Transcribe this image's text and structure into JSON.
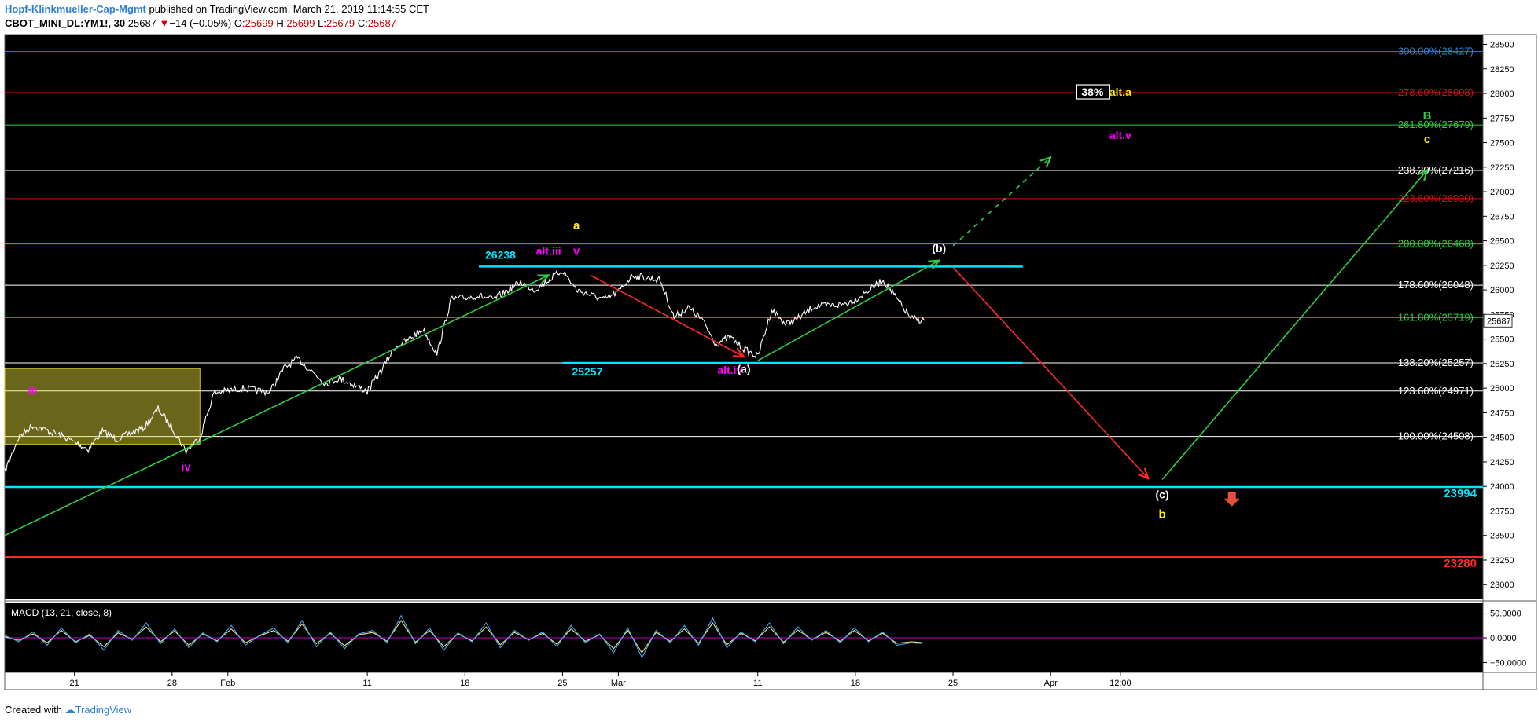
{
  "header": {
    "author": "Hopf-Klinkmueller-Cap-Mgmt",
    "published": "published on TradingView.com, March 21, 2019 11:14:55 CET",
    "symbol": "CBOT_MINI_DL:YM1!, 30",
    "last": "25687",
    "change_arrow": "▼",
    "change": "−14 (−0.05%)",
    "o_label": "O:",
    "o": "25699",
    "h_label": "H:",
    "h": "25699",
    "l_label": "L:",
    "l": "25679",
    "c_label": "C:",
    "c": "25687"
  },
  "footer": {
    "created_with": "Created with",
    "brand": "TradingView",
    "logo_icon": "tradingview-cloud-icon"
  },
  "chart_data": {
    "type": "line",
    "colors": {
      "background": "#000000",
      "price": "#ffffff",
      "cyan": "#00e5ff",
      "green": "#2ecc40",
      "red": "#ff2a2a",
      "yellow": "#ffee00",
      "magenta": "#ff00ff",
      "white": "#ffffff",
      "blue": "#2a7fd4",
      "darkred": "#cc1111",
      "macd": "#3fa9f5",
      "signal": "#f0e68c",
      "zero": "#c000c0"
    },
    "ylim": [
      22850,
      28600
    ],
    "y_ticks": [
      23000,
      23250,
      23500,
      23750,
      24000,
      24250,
      24500,
      24750,
      25000,
      25250,
      25500,
      25750,
      26000,
      26250,
      26500,
      26750,
      27000,
      27250,
      27500,
      27750,
      28000,
      28250,
      28500
    ],
    "y_tick_labels": [
      "23000",
      "23250",
      "23500",
      "23750",
      "24000",
      "24250",
      "24500",
      "24750",
      "25000",
      "25250",
      "25500",
      "25750",
      "26000",
      "26250",
      "26500",
      "26750",
      "27000",
      "27250",
      "27500",
      "27750",
      "28000",
      "28250",
      "28500"
    ],
    "x_ticks": [
      {
        "label": "21",
        "x": "2019-01-21"
      },
      {
        "label": "28",
        "x": "2019-01-28"
      },
      {
        "label": "Feb",
        "x": "2019-02-01"
      },
      {
        "label": "11",
        "x": "2019-02-11"
      },
      {
        "label": "18",
        "x": "2019-02-18"
      },
      {
        "label": "25",
        "x": "2019-02-25"
      },
      {
        "label": "Mar",
        "x": "2019-03-01"
      },
      {
        "label": "11",
        "x": "2019-03-11"
      },
      {
        "label": "18",
        "x": "2019-03-18"
      },
      {
        "label": "25",
        "x": "2019-03-25"
      },
      {
        "label": "Apr",
        "x": "2019-04-01"
      },
      {
        "label": "12:00",
        "x": "2019-04-06"
      }
    ],
    "price_points": [
      {
        "x": "2019-01-16",
        "y": 24150
      },
      {
        "x": "2019-01-17",
        "y": 24500
      },
      {
        "x": "2019-01-18",
        "y": 24620
      },
      {
        "x": "2019-01-20",
        "y": 24520
      },
      {
        "x": "2019-01-22",
        "y": 24380
      },
      {
        "x": "2019-01-23",
        "y": 24560
      },
      {
        "x": "2019-01-24",
        "y": 24480
      },
      {
        "x": "2019-01-26",
        "y": 24600
      },
      {
        "x": "2019-01-27",
        "y": 24790
      },
      {
        "x": "2019-01-28",
        "y": 24600
      },
      {
        "x": "2019-01-29",
        "y": 24360
      },
      {
        "x": "2019-01-30",
        "y": 24500
      },
      {
        "x": "2019-01-31",
        "y": 24950
      },
      {
        "x": "2019-02-02",
        "y": 25000
      },
      {
        "x": "2019-02-04",
        "y": 24960
      },
      {
        "x": "2019-02-05",
        "y": 25200
      },
      {
        "x": "2019-02-06",
        "y": 25300
      },
      {
        "x": "2019-02-08",
        "y": 25050
      },
      {
        "x": "2019-02-09",
        "y": 25100
      },
      {
        "x": "2019-02-11",
        "y": 24970
      },
      {
        "x": "2019-02-12",
        "y": 25180
      },
      {
        "x": "2019-02-13",
        "y": 25420
      },
      {
        "x": "2019-02-14",
        "y": 25500
      },
      {
        "x": "2019-02-15",
        "y": 25600
      },
      {
        "x": "2019-02-16",
        "y": 25350
      },
      {
        "x": "2019-02-17",
        "y": 25900
      },
      {
        "x": "2019-02-19",
        "y": 25940
      },
      {
        "x": "2019-02-20",
        "y": 25900
      },
      {
        "x": "2019-02-22",
        "y": 26080
      },
      {
        "x": "2019-02-23",
        "y": 26000
      },
      {
        "x": "2019-02-25",
        "y": 26200
      },
      {
        "x": "2019-02-26",
        "y": 26000
      },
      {
        "x": "2019-02-27",
        "y": 25950
      },
      {
        "x": "2019-02-28",
        "y": 25900
      },
      {
        "x": "2019-03-01",
        "y": 25980
      },
      {
        "x": "2019-03-02",
        "y": 26150
      },
      {
        "x": "2019-03-04",
        "y": 26100
      },
      {
        "x": "2019-03-05",
        "y": 25720
      },
      {
        "x": "2019-03-06",
        "y": 25820
      },
      {
        "x": "2019-03-07",
        "y": 25700
      },
      {
        "x": "2019-03-08",
        "y": 25450
      },
      {
        "x": "2019-03-09",
        "y": 25520
      },
      {
        "x": "2019-03-10",
        "y": 25400
      },
      {
        "x": "2019-03-11",
        "y": 25320
      },
      {
        "x": "2019-03-12",
        "y": 25800
      },
      {
        "x": "2019-03-13",
        "y": 25650
      },
      {
        "x": "2019-03-14",
        "y": 25720
      },
      {
        "x": "2019-03-15",
        "y": 25830
      },
      {
        "x": "2019-03-17",
        "y": 25850
      },
      {
        "x": "2019-03-18",
        "y": 25900
      },
      {
        "x": "2019-03-19",
        "y": 26000
      },
      {
        "x": "2019-03-20",
        "y": 26100
      },
      {
        "x": "2019-03-21",
        "y": 25900
      },
      {
        "x": "2019-03-22",
        "y": 25710
      },
      {
        "x": "2019-03-23",
        "y": 25687
      }
    ],
    "fib_levels": [
      {
        "label": "300.00%(28427)",
        "value": 28427,
        "color": "#2a7fd4"
      },
      {
        "label": "278.60%(28008)",
        "value": 28008,
        "color": "#cc1111"
      },
      {
        "label": "261.80%(27679)",
        "value": 27679,
        "color": "#2ecc40"
      },
      {
        "label": "238.20%(27216)",
        "value": 27216,
        "color": "#ffffff"
      },
      {
        "label": "223.60%(26930)",
        "value": 26930,
        "color": "#cc1111"
      },
      {
        "label": "200.00%(26468)",
        "value": 26468,
        "color": "#2ecc40"
      },
      {
        "label": "178.60%(26048)",
        "value": 26048,
        "color": "#ffffff"
      },
      {
        "label": "161.80%(25719)",
        "value": 25719,
        "color": "#2ecc40"
      },
      {
        "label": "138.20%(25257)",
        "value": 25257,
        "color": "#ffffff"
      },
      {
        "label": "123.60%(24971)",
        "value": 24971,
        "color": "#ffffff"
      },
      {
        "label": "100.00%(24508)",
        "value": 24508,
        "color": "#ffffff"
      }
    ],
    "horizontal_levels": [
      {
        "label": "23994",
        "value": 23994,
        "color": "#00e5ff"
      },
      {
        "label": "23280",
        "value": 23280,
        "color": "#ff2a2a"
      }
    ],
    "last_price_label": "25687",
    "segment_levels": [
      {
        "label": "26238",
        "value": 26238,
        "x_start": "2019-02-19",
        "x_end": "2019-03-30"
      },
      {
        "label": "25257",
        "value": 25257,
        "x_start": "2019-02-25",
        "x_end": "2019-03-30"
      }
    ],
    "projection_lines": [
      {
        "name": "green-channel-up",
        "color": "#2ecc40",
        "dash": false,
        "arrow": true,
        "from": {
          "x": "2019-01-16",
          "y": 23500
        },
        "to": {
          "x": "2019-02-24",
          "y": 26150
        }
      },
      {
        "name": "red-down-alt-iv",
        "color": "#ff2a2a",
        "dash": false,
        "arrow": true,
        "from": {
          "x": "2019-02-27",
          "y": 26150
        },
        "to": {
          "x": "2019-03-10",
          "y": 25320
        }
      },
      {
        "name": "green-up-to-b",
        "color": "#2ecc40",
        "dash": false,
        "arrow": true,
        "from": {
          "x": "2019-03-11",
          "y": 25280
        },
        "to": {
          "x": "2019-03-24",
          "y": 26300
        }
      },
      {
        "name": "green-dashed-alt",
        "color": "#2ecc40",
        "dash": true,
        "arrow": true,
        "from": {
          "x": "2019-03-25",
          "y": 26450
        },
        "to": {
          "x": "2019-04-01",
          "y": 27350
        }
      },
      {
        "name": "red-down-c",
        "color": "#ff2a2a",
        "dash": false,
        "arrow": true,
        "from": {
          "x": "2019-03-25",
          "y": 26230
        },
        "to": {
          "x": "2019-04-08",
          "y": 24080
        }
      },
      {
        "name": "green-up-final",
        "color": "#2ecc40",
        "dash": false,
        "arrow": true,
        "from": {
          "x": "2019-04-09",
          "y": 24070
        },
        "to": {
          "x": "2019-04-28",
          "y": 27220
        }
      }
    ],
    "highlight_box": {
      "x_start": "2019-01-16",
      "x_end": "2019-01-30",
      "y_low": 24430,
      "y_high": 25200,
      "color": "#e8e03c"
    },
    "wave_labels": [
      {
        "text": "iii",
        "x": "2019-01-18",
        "y": 24970,
        "color": "#ff00ff"
      },
      {
        "text": "iv",
        "x": "2019-01-29",
        "y": 24180,
        "color": "#ff00ff"
      },
      {
        "text": "a",
        "x": "2019-02-26",
        "y": 26640,
        "color": "#ffee00"
      },
      {
        "text": "alt.iii",
        "x": "2019-02-24",
        "y": 26380,
        "color": "#ff00ff"
      },
      {
        "text": "v",
        "x": "2019-02-26",
        "y": 26380,
        "color": "#ff00ff"
      },
      {
        "text": "alt.iv",
        "x": "2019-03-09",
        "y": 25170,
        "color": "#ff00ff"
      },
      {
        "text": "(a)",
        "x": "2019-03-10",
        "y": 25180,
        "color": "#ffffff"
      },
      {
        "text": "(b)",
        "x": "2019-03-24",
        "y": 26410,
        "color": "#ffffff"
      },
      {
        "text": "38%",
        "x": "2019-04-04",
        "y": 28000,
        "color": "#ffffff"
      },
      {
        "text": "alt.a",
        "x": "2019-04-06",
        "y": 28000,
        "color": "#ffee00"
      },
      {
        "text": "alt.v",
        "x": "2019-04-06",
        "y": 27560,
        "color": "#ff00ff"
      },
      {
        "text": "(c)",
        "x": "2019-04-09",
        "y": 23900,
        "color": "#ffffff"
      },
      {
        "text": "b",
        "x": "2019-04-09",
        "y": 23700,
        "color": "#ffee00"
      },
      {
        "text": "B",
        "x": "2019-04-28",
        "y": 27760,
        "color": "#2ecc40"
      },
      {
        "text": "c",
        "x": "2019-04-28",
        "y": 27520,
        "color": "#ffee00"
      }
    ],
    "down_arrow_marker": {
      "x": "2019-04-14",
      "y": 23860,
      "color": "#e8503c"
    },
    "macd": {
      "title": "MACD (13, 21, close, 8)",
      "y_ticks": [
        50,
        0,
        -50
      ],
      "y_tick_labels": [
        "50.0000",
        "0.0000",
        "−50.0000"
      ],
      "ylim": [
        -70,
        70
      ],
      "macd_values": [
        5,
        -8,
        12,
        -15,
        20,
        -10,
        8,
        -25,
        15,
        -5,
        30,
        -12,
        18,
        -20,
        10,
        -8,
        25,
        -15,
        5,
        20,
        -10,
        35,
        -18,
        12,
        -22,
        8,
        15,
        -10,
        45,
        -12,
        20,
        -25,
        10,
        -8,
        30,
        -20,
        15,
        -5,
        12,
        -18,
        25,
        -10,
        8,
        -30,
        20,
        -40,
        15,
        -10,
        25,
        -15,
        40,
        -20,
        12,
        -8,
        30,
        -12,
        22,
        -5,
        15,
        -10,
        20,
        -8,
        12,
        -15,
        -10,
        -12
      ],
      "signal_values": [
        2,
        -5,
        8,
        -10,
        15,
        -8,
        5,
        -18,
        10,
        -3,
        22,
        -8,
        14,
        -15,
        8,
        -6,
        18,
        -10,
        4,
        15,
        -7,
        28,
        -12,
        9,
        -16,
        6,
        11,
        -7,
        35,
        -9,
        15,
        -18,
        8,
        -6,
        22,
        -14,
        11,
        -4,
        9,
        -13,
        18,
        -7,
        6,
        -22,
        15,
        -30,
        11,
        -7,
        18,
        -11,
        30,
        -14,
        9,
        -6,
        22,
        -9,
        16,
        -4,
        11,
        -7,
        15,
        -6,
        9,
        -11,
        -8,
        -10
      ]
    }
  }
}
